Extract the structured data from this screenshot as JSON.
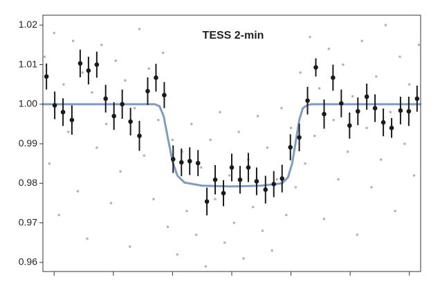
{
  "chart_data": {
    "type": "scatter",
    "title": "TESS 2-min",
    "xlim": [
      -3.19,
      3.19
    ],
    "xticks": [
      -3,
      -2,
      -1,
      0,
      1,
      2,
      3
    ],
    "ylim": [
      0.9577,
      1.0225
    ],
    "yticks": [
      0.96,
      0.97,
      0.98,
      0.99,
      {
        "value": 1,
        "label": "1.00"
      },
      1.01,
      1.02
    ],
    "series": [
      {
        "type": "scatter",
        "color": "#b4b4b4",
        "x": [
          -3.16,
          -3.08,
          -3.0,
          -2.92,
          -2.84,
          -2.76,
          -2.68,
          -2.6,
          -2.52,
          -2.44,
          -2.36,
          -2.28,
          -2.2,
          -2.12,
          -2.04,
          -1.96,
          -1.88,
          -1.8,
          -1.72,
          -1.64,
          -1.56,
          -1.48,
          -1.4,
          -1.32,
          -1.24,
          -1.16,
          -1.08,
          -1.0,
          -0.92,
          -0.84,
          -0.76,
          -0.68,
          -0.6,
          -0.52,
          -0.44,
          -0.36,
          -0.28,
          -0.2,
          -0.12,
          -0.04,
          0.04,
          0.12,
          0.2,
          0.28,
          0.36,
          0.44,
          0.52,
          0.6,
          0.68,
          0.76,
          0.84,
          0.92,
          1.0,
          1.08,
          1.16,
          1.24,
          1.32,
          1.4,
          1.48,
          1.56,
          1.64,
          1.72,
          1.8,
          1.88,
          1.96,
          2.04,
          2.12,
          2.2,
          2.28,
          2.36,
          2.44,
          2.52,
          2.6,
          2.68,
          2.76,
          2.84,
          2.92,
          3.0,
          3.08,
          3.16
        ],
        "values": [
          1.012,
          0.985,
          1.018,
          0.972,
          1.005,
          0.993,
          1.016,
          0.978,
          1.008,
          0.966,
          1.003,
          0.989,
          1.015,
          0.995,
          0.975,
          1.011,
          0.983,
          1.006,
          0.964,
          0.999,
          1.019,
          0.987,
          1.009,
          0.976,
          0.996,
          1.013,
          0.969,
          0.991,
          0.962,
          0.988,
          0.973,
          0.995,
          0.967,
          0.984,
          0.959,
          0.991,
          0.976,
          0.998,
          0.965,
          0.982,
          0.97,
          0.993,
          0.961,
          0.986,
          0.974,
          0.997,
          0.968,
          0.989,
          0.963,
          0.981,
          0.999,
          0.972,
          0.994,
          0.979,
          1.008,
          0.985,
          1.017,
          0.992,
          1.004,
          0.971,
          1.014,
          0.996,
          0.981,
          1.01,
          0.988,
          1.002,
          0.967,
          1.016,
          0.994,
          0.979,
          1.007,
          0.986,
          1.02,
          0.998,
          0.973,
          1.012,
          0.99,
          1.005,
          0.982,
          1.015
        ]
      },
      {
        "type": "line",
        "color": "#7f9bc3",
        "x": [
          -3.2,
          -1.3,
          -1.22,
          -1.15,
          -1.08,
          -1.0,
          -0.92,
          -0.8,
          -0.5,
          0,
          0.5,
          0.85,
          0.95,
          1.02,
          1.08,
          1.14,
          1.2,
          1.28,
          1.35,
          3.2
        ],
        "values": [
          1.0,
          1.0,
          0.9995,
          0.997,
          0.9915,
          0.9855,
          0.982,
          0.9802,
          0.9794,
          0.9792,
          0.9794,
          0.98,
          0.9815,
          0.985,
          0.9905,
          0.996,
          0.999,
          0.9998,
          1.0,
          1.0
        ]
      },
      {
        "type": "errorbar",
        "color": "#1a1a1a",
        "x": [
          -3.13,
          -2.99,
          -2.85,
          -2.7,
          -2.56,
          -2.42,
          -2.28,
          -2.13,
          -1.99,
          -1.85,
          -1.71,
          -1.56,
          -1.42,
          -1.28,
          -1.14,
          -0.99,
          -0.85,
          -0.71,
          -0.57,
          -0.42,
          -0.28,
          -0.14,
          0.0,
          0.14,
          0.28,
          0.42,
          0.57,
          0.71,
          0.85,
          0.99,
          1.14,
          1.28,
          1.42,
          1.56,
          1.71,
          1.85,
          1.99,
          2.13,
          2.28,
          2.42,
          2.56,
          2.7,
          2.85,
          2.99,
          3.13
        ],
        "values": [
          1.007,
          0.9997,
          0.998,
          0.996,
          1.0103,
          1.0085,
          1.01,
          1.0014,
          0.997,
          1.0,
          0.9956,
          0.992,
          1.0033,
          1.0067,
          1.0023,
          0.9861,
          0.9853,
          0.9856,
          0.9851,
          0.9754,
          0.9809,
          0.9775,
          0.984,
          0.9809,
          0.984,
          0.9805,
          0.9784,
          0.9798,
          0.9812,
          0.9891,
          0.9916,
          1.0009,
          1.0093,
          0.9975,
          1.0067,
          1.0002,
          0.9946,
          0.9982,
          1.0019,
          0.999,
          0.9954,
          0.994,
          0.9984,
          0.9982,
          1.0014
        ],
        "errors": [
          0.0033,
          0.0035,
          0.0035,
          0.0037,
          0.0035,
          0.0035,
          0.0033,
          0.0035,
          0.0035,
          0.0037,
          0.0035,
          0.0038,
          0.0035,
          0.0035,
          0.0033,
          0.0035,
          0.0035,
          0.0035,
          0.0033,
          0.0035,
          0.0037,
          0.0033,
          0.0035,
          0.0035,
          0.0037,
          0.0035,
          0.0035,
          0.0033,
          0.0035,
          0.0033,
          0.0035,
          0.0035,
          0.0023,
          0.0037,
          0.0033,
          0.0035,
          0.0033,
          0.0035,
          0.0033,
          0.0035,
          0.0035,
          0.0025,
          0.0035,
          0.0037,
          0.0033
        ]
      }
    ]
  }
}
